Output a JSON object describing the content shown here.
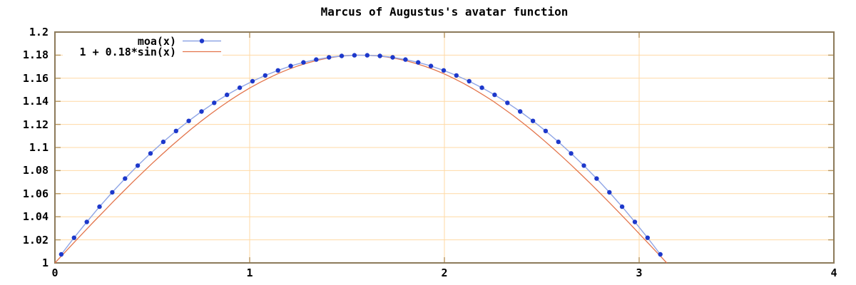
{
  "colors": {
    "background": "#ffffff",
    "text": "#000000",
    "plot_border": "#8c7a5a",
    "tick_mark": "#b8955a",
    "grid": "#ffd9a4"
  },
  "chart_data": {
    "type": "line",
    "title": "Marcus of Augustus's avatar function",
    "xlabel": "",
    "ylabel": "",
    "grid": true,
    "legend_position": "top-left-inside",
    "x_axis": {
      "range": [
        0,
        4
      ],
      "ticks": [
        0,
        1,
        2,
        3,
        4
      ],
      "tick_labels": [
        "0",
        "1",
        "2",
        "3",
        "4"
      ]
    },
    "y_axis": {
      "range": [
        1,
        1.2
      ],
      "ticks": [
        1,
        1.02,
        1.04,
        1.06,
        1.08,
        1.1,
        1.12,
        1.14,
        1.16,
        1.18,
        1.2
      ],
      "tick_labels": [
        "1",
        "1.02",
        "1.04",
        "1.06",
        "1.08",
        "1.1",
        "1.12",
        "1.14",
        "1.16",
        "1.18",
        "1.2"
      ]
    },
    "series": [
      {
        "name": "moa(x)",
        "style": "linespoints",
        "line_color": "#8fa5e6",
        "point_color": "#1d38cb",
        "point_radius": 3.2,
        "line_width": 1.4,
        "x": [
          0.0327,
          0.0982,
          0.1636,
          0.2291,
          0.2945,
          0.36,
          0.4254,
          0.4909,
          0.5563,
          0.6218,
          0.6872,
          0.7527,
          0.8181,
          0.8836,
          0.949,
          1.0145,
          1.0799,
          1.1454,
          1.2108,
          1.2763,
          1.3417,
          1.4072,
          1.4726,
          1.5381,
          1.6035,
          1.669,
          1.7344,
          1.7999,
          1.8653,
          1.9308,
          1.9962,
          2.0617,
          2.1271,
          2.1926,
          2.258,
          2.3235,
          2.3889,
          2.4544,
          2.5198,
          2.5853,
          2.6507,
          2.7162,
          2.7816,
          2.8471,
          2.9125,
          2.978,
          3.0434,
          3.1089
        ],
        "y": [
          1.0074,
          1.0218,
          1.0355,
          1.0487,
          1.0612,
          1.0731,
          1.0843,
          1.0949,
          1.1049,
          1.1143,
          1.123,
          1.1312,
          1.1387,
          1.1456,
          1.1518,
          1.1574,
          1.1624,
          1.1668,
          1.1706,
          1.1737,
          1.1762,
          1.1781,
          1.1793,
          1.1799,
          1.1799,
          1.1793,
          1.1781,
          1.1762,
          1.1737,
          1.1706,
          1.1668,
          1.1624,
          1.1574,
          1.1518,
          1.1456,
          1.1387,
          1.1312,
          1.123,
          1.1143,
          1.1049,
          1.0949,
          1.0843,
          1.0731,
          1.0612,
          1.0487,
          1.0355,
          1.0218,
          1.0074
        ]
      },
      {
        "name": "1 + 0.18*sin(x)",
        "style": "line",
        "line_color": "#e3744b",
        "line_width": 1.3,
        "x": [
          0,
          0.05,
          0.1,
          0.15,
          0.2,
          0.25,
          0.3,
          0.35,
          0.4,
          0.45,
          0.5,
          0.55,
          0.6,
          0.65,
          0.7,
          0.75,
          0.8,
          0.85,
          0.9,
          0.95,
          1.0,
          1.05,
          1.1,
          1.15,
          1.2,
          1.25,
          1.3,
          1.35,
          1.4,
          1.45,
          1.5,
          1.55,
          1.6,
          1.65,
          1.7,
          1.75,
          1.8,
          1.85,
          1.9,
          1.95,
          2.0,
          2.05,
          2.1,
          2.15,
          2.2,
          2.25,
          2.3,
          2.35,
          2.4,
          2.45,
          2.5,
          2.55,
          2.6,
          2.65,
          2.7,
          2.75,
          2.8,
          2.85,
          2.9,
          2.95,
          3.0,
          3.05,
          3.1,
          3.1416
        ],
        "y": [
          1.0,
          1.009,
          1.018,
          1.0269,
          1.0358,
          1.0445,
          1.0532,
          1.0617,
          1.0701,
          1.0783,
          1.0863,
          1.0941,
          1.1016,
          1.1089,
          1.116,
          1.1227,
          1.1291,
          1.1352,
          1.141,
          1.1464,
          1.1515,
          1.1561,
          1.1604,
          1.1643,
          1.1678,
          1.1708,
          1.1734,
          1.1756,
          1.1774,
          1.1787,
          1.1795,
          1.18,
          1.1799,
          1.1794,
          1.1785,
          1.1771,
          1.1753,
          1.173,
          1.1703,
          1.1672,
          1.1637,
          1.1597,
          1.1554,
          1.1506,
          1.1455,
          1.1401,
          1.1342,
          1.1281,
          1.1216,
          1.1148,
          1.1077,
          1.1004,
          1.0928,
          1.085,
          1.0769,
          1.0687,
          1.0603,
          1.0517,
          1.0431,
          1.0343,
          1.0254,
          1.0165,
          1.0075,
          1.0
        ]
      }
    ]
  }
}
